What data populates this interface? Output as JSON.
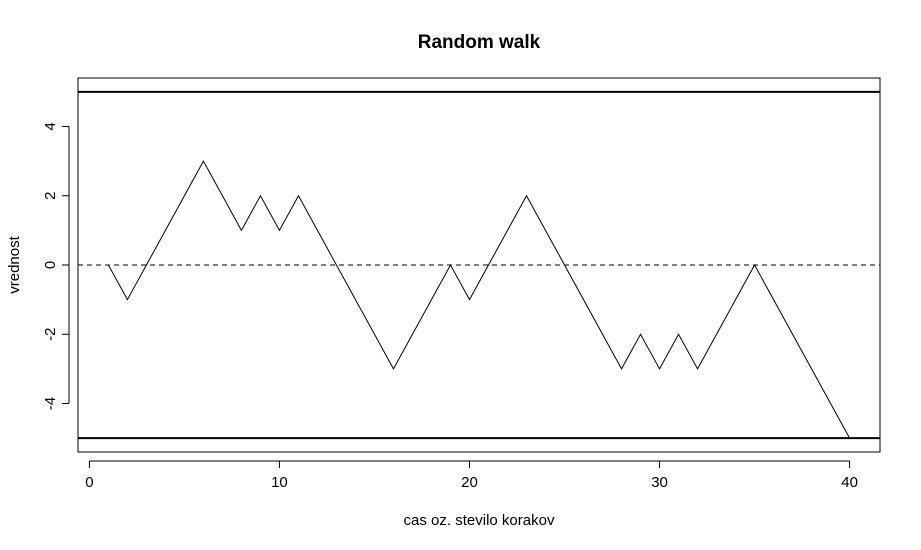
{
  "chart_data": {
    "type": "line",
    "title": "Random walk",
    "xlabel": "cas oz. stevilo korakov",
    "ylabel": "vrednost",
    "xlim": [
      -0.6,
      41.6
    ],
    "ylim": [
      -5.4,
      5.4
    ],
    "xticks": [
      0,
      10,
      20,
      30,
      40
    ],
    "yticks": [
      -4,
      -2,
      0,
      2,
      4
    ],
    "grid": false,
    "series": [
      {
        "x": [
          1,
          2,
          3,
          4,
          5,
          6,
          7,
          8,
          9,
          10,
          11,
          12,
          13,
          14,
          15,
          16,
          17,
          18,
          19,
          20,
          21,
          22,
          23,
          24,
          25,
          26,
          27,
          28,
          29,
          30,
          31,
          32,
          33,
          34,
          35,
          36,
          37,
          38,
          39,
          40
        ],
        "y": [
          0,
          -1,
          0,
          1,
          2,
          3,
          2,
          1,
          2,
          1,
          2,
          1,
          0,
          -1,
          -2,
          -3,
          -2,
          -1,
          0,
          -1,
          0,
          1,
          2,
          1,
          0,
          -1,
          -2,
          -3,
          -2,
          -3,
          -2,
          -3,
          -2,
          -1,
          0,
          -1,
          -2,
          -3,
          -4,
          -5
        ]
      }
    ],
    "reference_lines": [
      {
        "y": 5,
        "style": "solid-thick"
      },
      {
        "y": -5,
        "style": "solid-thick"
      },
      {
        "y": 0,
        "style": "dashed"
      }
    ]
  }
}
